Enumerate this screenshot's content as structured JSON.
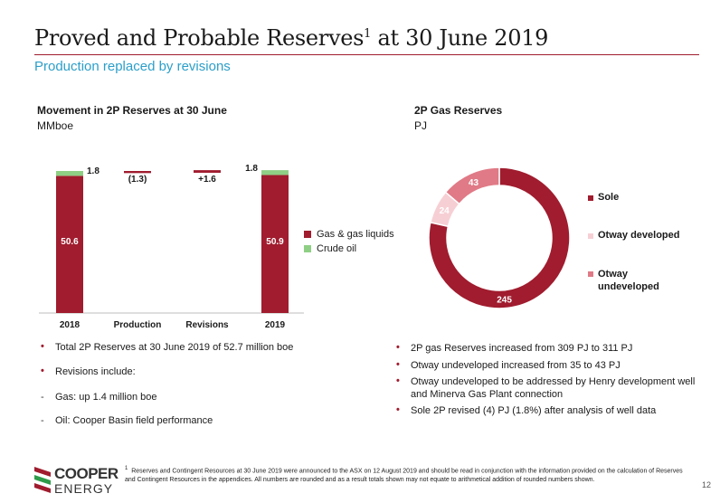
{
  "header": {
    "title": "Proved and Probable Reserves",
    "title_sup": "1",
    "title_rest": " at 30 June 2019",
    "subtitle": "Production replaced by revisions"
  },
  "left_chart": {
    "title": "Movement in 2P Reserves at 30 June",
    "unit": "MMboe"
  },
  "right_chart": {
    "title": "2P Gas Reserves",
    "unit": "PJ"
  },
  "colors": {
    "accent": "#a01c2e",
    "crude_oil": "#8fcf85",
    "otway_developed": "#f6cfd4",
    "otway_undeveloped": "#e07a86",
    "subtitle": "#2c9fc9"
  },
  "chart_data": [
    {
      "type": "bar",
      "subtype": "waterfall",
      "categories": [
        "2018",
        "Production",
        "Revisions",
        "2019"
      ],
      "series": [
        {
          "name": "Gas & gas liquids",
          "values": [
            50.6,
            null,
            null,
            50.9
          ]
        },
        {
          "name": "Crude oil",
          "values": [
            1.8,
            null,
            null,
            1.8
          ]
        }
      ],
      "movements": [
        {
          "category": "Production",
          "value": -1.3
        },
        {
          "category": "Revisions",
          "value": 1.6
        }
      ],
      "labels": {
        "2018_gas": "50.6",
        "2018_oil": "1.8",
        "production": "(1.3)",
        "revisions": "+1.6",
        "2019_gas": "50.9",
        "2019_oil": "1.8"
      },
      "ylim": [
        0,
        55
      ],
      "legend_position": "right"
    },
    {
      "type": "pie",
      "subtype": "donut",
      "slices": [
        {
          "name": "Sole",
          "value": 245
        },
        {
          "name": "Otway developed",
          "value": 24
        },
        {
          "name": "Otway undeveloped",
          "value": 43
        }
      ],
      "legend_position": "right"
    }
  ],
  "legend_left": {
    "items": [
      "Gas & gas liquids",
      "Crude oil"
    ]
  },
  "legend_right": {
    "sole": "Sole",
    "otway_dev": "Otway developed",
    "otway_undev_1": "Otway",
    "otway_undev_2": "undeveloped"
  },
  "bullets_left": [
    "Total 2P Reserves at 30 June 2019 of 52.7 million boe",
    "Revisions include:",
    "Gas: up 1.4 million boe",
    "Oil:  Cooper Basin field performance"
  ],
  "bullets_right": [
    "2P gas Reserves increased from 309 PJ to 311 PJ",
    "Otway undeveloped increased from 35 to 43 PJ",
    "Otway undeveloped to be addressed by Henry development well and Minerva Gas Plant connection",
    "Sole 2P revised (4) PJ (1.8%) after analysis of well data"
  ],
  "footnote": {
    "sup": "1",
    "text": "Reserves and Contingent Resources at 30 June 2019 were announced to the ASX on 12 August 2019 and should be read in conjunction with the information provided on the calculation of Reserves and Contingent Resources in the appendices. All numbers are rounded and as a result totals shown may not equate to arithmetical addition of rounded numbers shown."
  },
  "page_number": "12",
  "logo": {
    "line1": "COOPER",
    "line2": "ENERGY"
  }
}
